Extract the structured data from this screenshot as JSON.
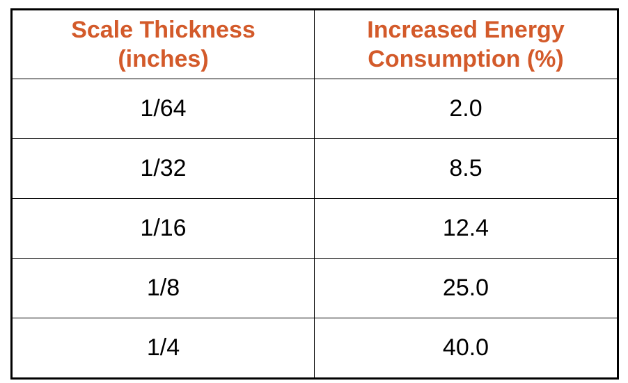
{
  "colors": {
    "header_text": "#d35a2a",
    "body_text": "#000000",
    "border": "#000000",
    "background": "#ffffff"
  },
  "table": {
    "headers": [
      {
        "line1": "Scale Thickness",
        "line2": "(inches)"
      },
      {
        "line1": "Increased Energy",
        "line2": "Consumption (%)"
      }
    ],
    "rows": [
      {
        "thickness": "1/64",
        "consumption": "2.0"
      },
      {
        "thickness": "1/32",
        "consumption": "8.5"
      },
      {
        "thickness": "1/16",
        "consumption": "12.4"
      },
      {
        "thickness": "1/8",
        "consumption": "25.0"
      },
      {
        "thickness": "1/4",
        "consumption": "40.0"
      }
    ]
  }
}
